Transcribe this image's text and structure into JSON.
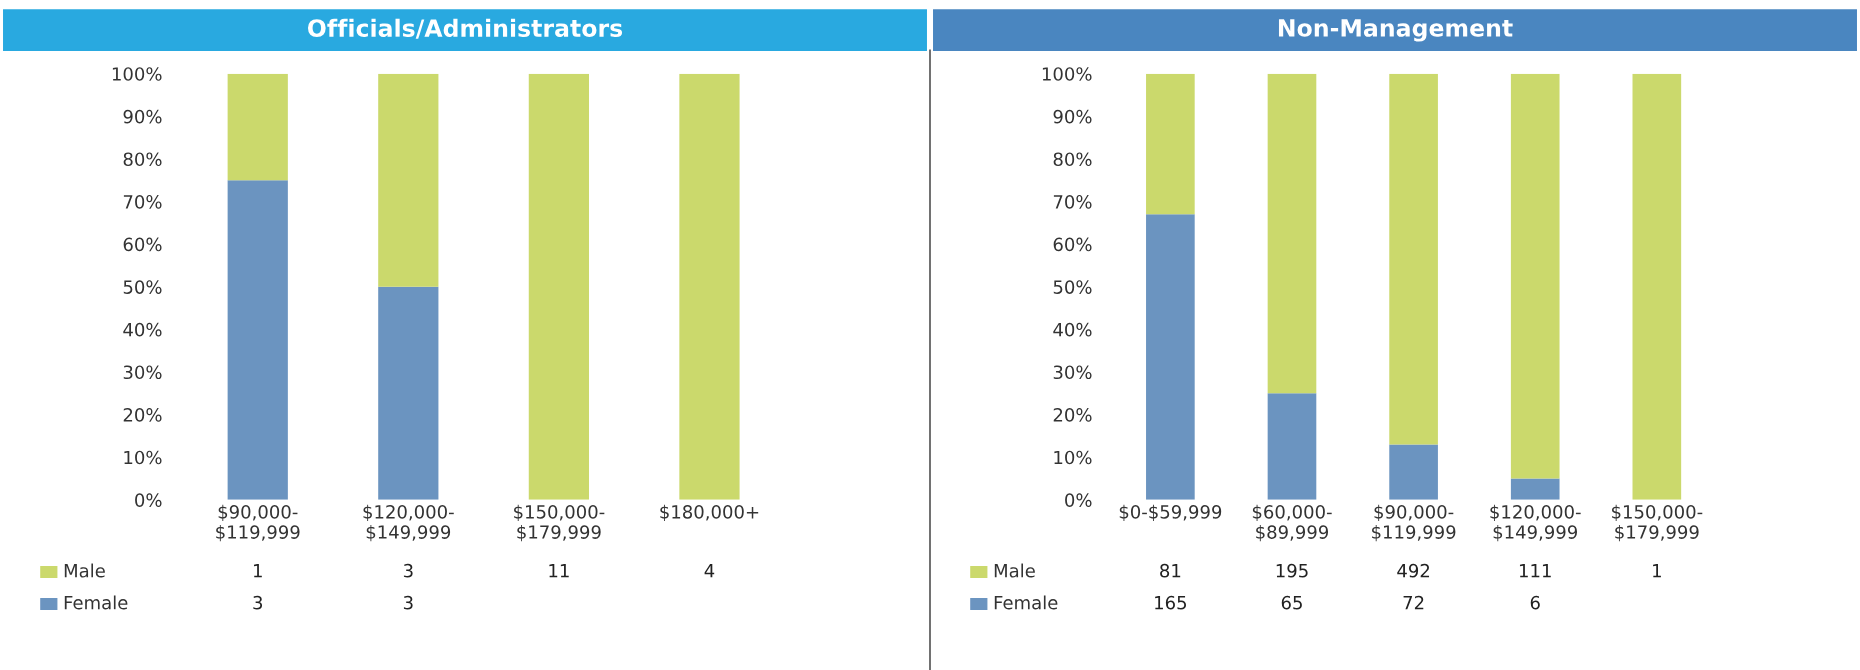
{
  "chart_data": [
    {
      "type": "bar",
      "title": "Officials/Administrators",
      "stacked": true,
      "legend": "bottom left",
      "grid": false,
      "categories": [
        "$90,000-\n$119,999",
        "$120,000-\n$149,999",
        "$150,000-\n$179,999",
        "$180,000+"
      ],
      "ylim": [
        0,
        100
      ],
      "yticks": [
        {
          "value": 0,
          "label": "0%"
        },
        {
          "value": 10,
          "label": "10%"
        },
        {
          "value": 20,
          "label": "20%"
        },
        {
          "value": 30,
          "label": "30%"
        },
        {
          "value": 40,
          "label": "40%"
        },
        {
          "value": 50,
          "label": "50%"
        },
        {
          "value": 60,
          "label": "60%"
        },
        {
          "value": 70,
          "label": "70%"
        },
        {
          "value": 80,
          "label": "80%"
        },
        {
          "value": 90,
          "label": "90%"
        },
        {
          "value": 100,
          "label": "100%"
        }
      ],
      "series": [
        {
          "name": "Female",
          "color": "#6b94c0",
          "values": [
            75,
            50,
            0,
            0
          ]
        },
        {
          "name": "Male",
          "color": "#cbd96c",
          "values": [
            25,
            50,
            100,
            100
          ]
        }
      ],
      "annotations": [
        "1",
        "3",
        "11",
        "4",
        "3",
        "3"
      ]
    },
    {
      "type": "bar",
      "title": "Non-Management",
      "stacked": true,
      "legend": "bottom left",
      "grid": false,
      "categories": [
        "$0-$59,999",
        "$60,000-\n$89,999",
        "$90,000-\n$119,999",
        "$120,000-\n$149,999",
        "$150,000-\n$179,999"
      ],
      "ylim": [
        0,
        100
      ],
      "yticks": [
        {
          "value": 0,
          "label": "0%"
        },
        {
          "value": 10,
          "label": "10%"
        },
        {
          "value": 20,
          "label": "20%"
        },
        {
          "value": 30,
          "label": "30%"
        },
        {
          "value": 40,
          "label": "40%"
        },
        {
          "value": 50,
          "label": "50%"
        },
        {
          "value": 60,
          "label": "60%"
        },
        {
          "value": 70,
          "label": "70%"
        },
        {
          "value": 80,
          "label": "80%"
        },
        {
          "value": 90,
          "label": "90%"
        },
        {
          "value": 100,
          "label": "100%"
        }
      ],
      "series": [
        {
          "name": "Female",
          "color": "#6b94c0",
          "values": [
            67,
            25,
            13,
            5,
            0
          ]
        },
        {
          "name": "Male",
          "color": "#cbd96c",
          "values": [
            33,
            75,
            87,
            95,
            100
          ]
        }
      ],
      "annotations": [
        "81",
        "195",
        "492",
        "111",
        "1",
        "165",
        "65",
        "72",
        "6"
      ]
    }
  ]
}
